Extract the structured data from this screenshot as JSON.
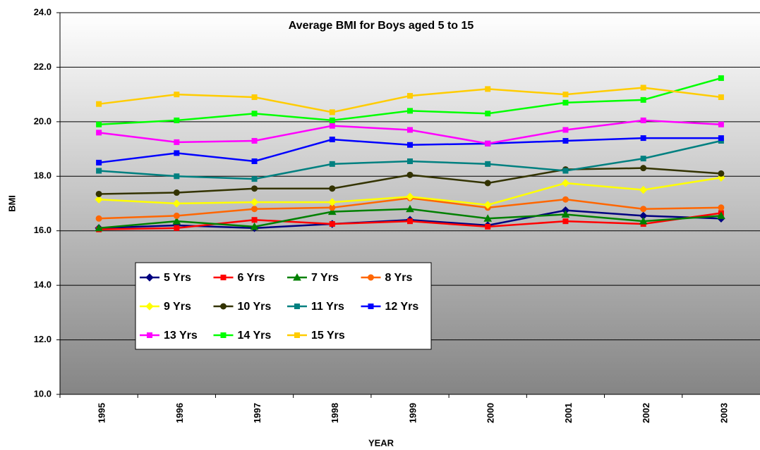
{
  "chart_data": {
    "type": "line",
    "title": "Average BMI for Boys aged 5 to 15",
    "x_label": "YEAR",
    "y_label": "BMI",
    "categories": [
      "1995",
      "1996",
      "1997",
      "1998",
      "1999",
      "2000",
      "2001",
      "2002",
      "2003"
    ],
    "ylim": [
      10,
      24
    ],
    "yticks": [
      {
        "value": 10,
        "label": "10.0"
      },
      {
        "value": 12,
        "label": "12.0"
      },
      {
        "value": 14,
        "label": "14.0"
      },
      {
        "value": 16,
        "label": "16.0"
      },
      {
        "value": 18,
        "label": "18.0"
      },
      {
        "value": 20,
        "label": "20.0"
      },
      {
        "value": 22,
        "label": "22.0"
      },
      {
        "value": 24,
        "label": "24.0"
      }
    ],
    "grid": true,
    "legend_position": "lower-left",
    "series": [
      {
        "name": "5 Yrs",
        "color": "#000080",
        "marker": "diamond",
        "values": [
          16.1,
          16.2,
          16.1,
          16.25,
          16.4,
          16.2,
          16.75,
          16.55,
          16.45
        ]
      },
      {
        "name": "6 Yrs",
        "color": "#ff0000",
        "marker": "square",
        "values": [
          16.05,
          16.1,
          16.4,
          16.25,
          16.35,
          16.15,
          16.35,
          16.25,
          16.65
        ]
      },
      {
        "name": "7 Yrs",
        "color": "#008000",
        "marker": "triangle",
        "values": [
          16.1,
          16.35,
          16.15,
          16.7,
          16.8,
          16.45,
          16.6,
          16.35,
          16.55
        ]
      },
      {
        "name": "8 Yrs",
        "color": "#ff6600",
        "marker": "circle",
        "values": [
          16.45,
          16.55,
          16.8,
          16.85,
          17.2,
          16.85,
          17.15,
          16.8,
          16.85
        ]
      },
      {
        "name": "9 Yrs",
        "color": "#ffff00",
        "marker": "diamond",
        "values": [
          17.15,
          17.0,
          17.05,
          17.05,
          17.25,
          16.95,
          17.75,
          17.5,
          17.95
        ]
      },
      {
        "name": "10 Yrs",
        "color": "#333300",
        "marker": "circle",
        "values": [
          17.35,
          17.4,
          17.55,
          17.55,
          18.05,
          17.75,
          18.25,
          18.3,
          18.1
        ]
      },
      {
        "name": "11 Yrs",
        "color": "#008080",
        "marker": "square",
        "values": [
          18.2,
          18.0,
          17.9,
          18.45,
          18.55,
          18.45,
          18.2,
          18.65,
          19.3
        ]
      },
      {
        "name": "12 Yrs",
        "color": "#0000ff",
        "marker": "square",
        "values": [
          18.5,
          18.85,
          18.55,
          19.35,
          19.15,
          19.2,
          19.3,
          19.4,
          19.4
        ]
      },
      {
        "name": "13 Yrs",
        "color": "#ff00ff",
        "marker": "square",
        "values": [
          19.6,
          19.25,
          19.3,
          19.85,
          19.7,
          19.2,
          19.7,
          20.05,
          19.9
        ]
      },
      {
        "name": "14 Yrs",
        "color": "#00ff00",
        "marker": "square",
        "values": [
          19.9,
          20.05,
          20.3,
          20.05,
          20.4,
          20.3,
          20.7,
          20.8,
          21.6
        ]
      },
      {
        "name": "15 Yrs",
        "color": "#ffcc00",
        "marker": "square",
        "values": [
          20.65,
          21.0,
          20.9,
          20.35,
          20.95,
          21.2,
          21.0,
          21.25,
          20.9
        ]
      }
    ]
  }
}
